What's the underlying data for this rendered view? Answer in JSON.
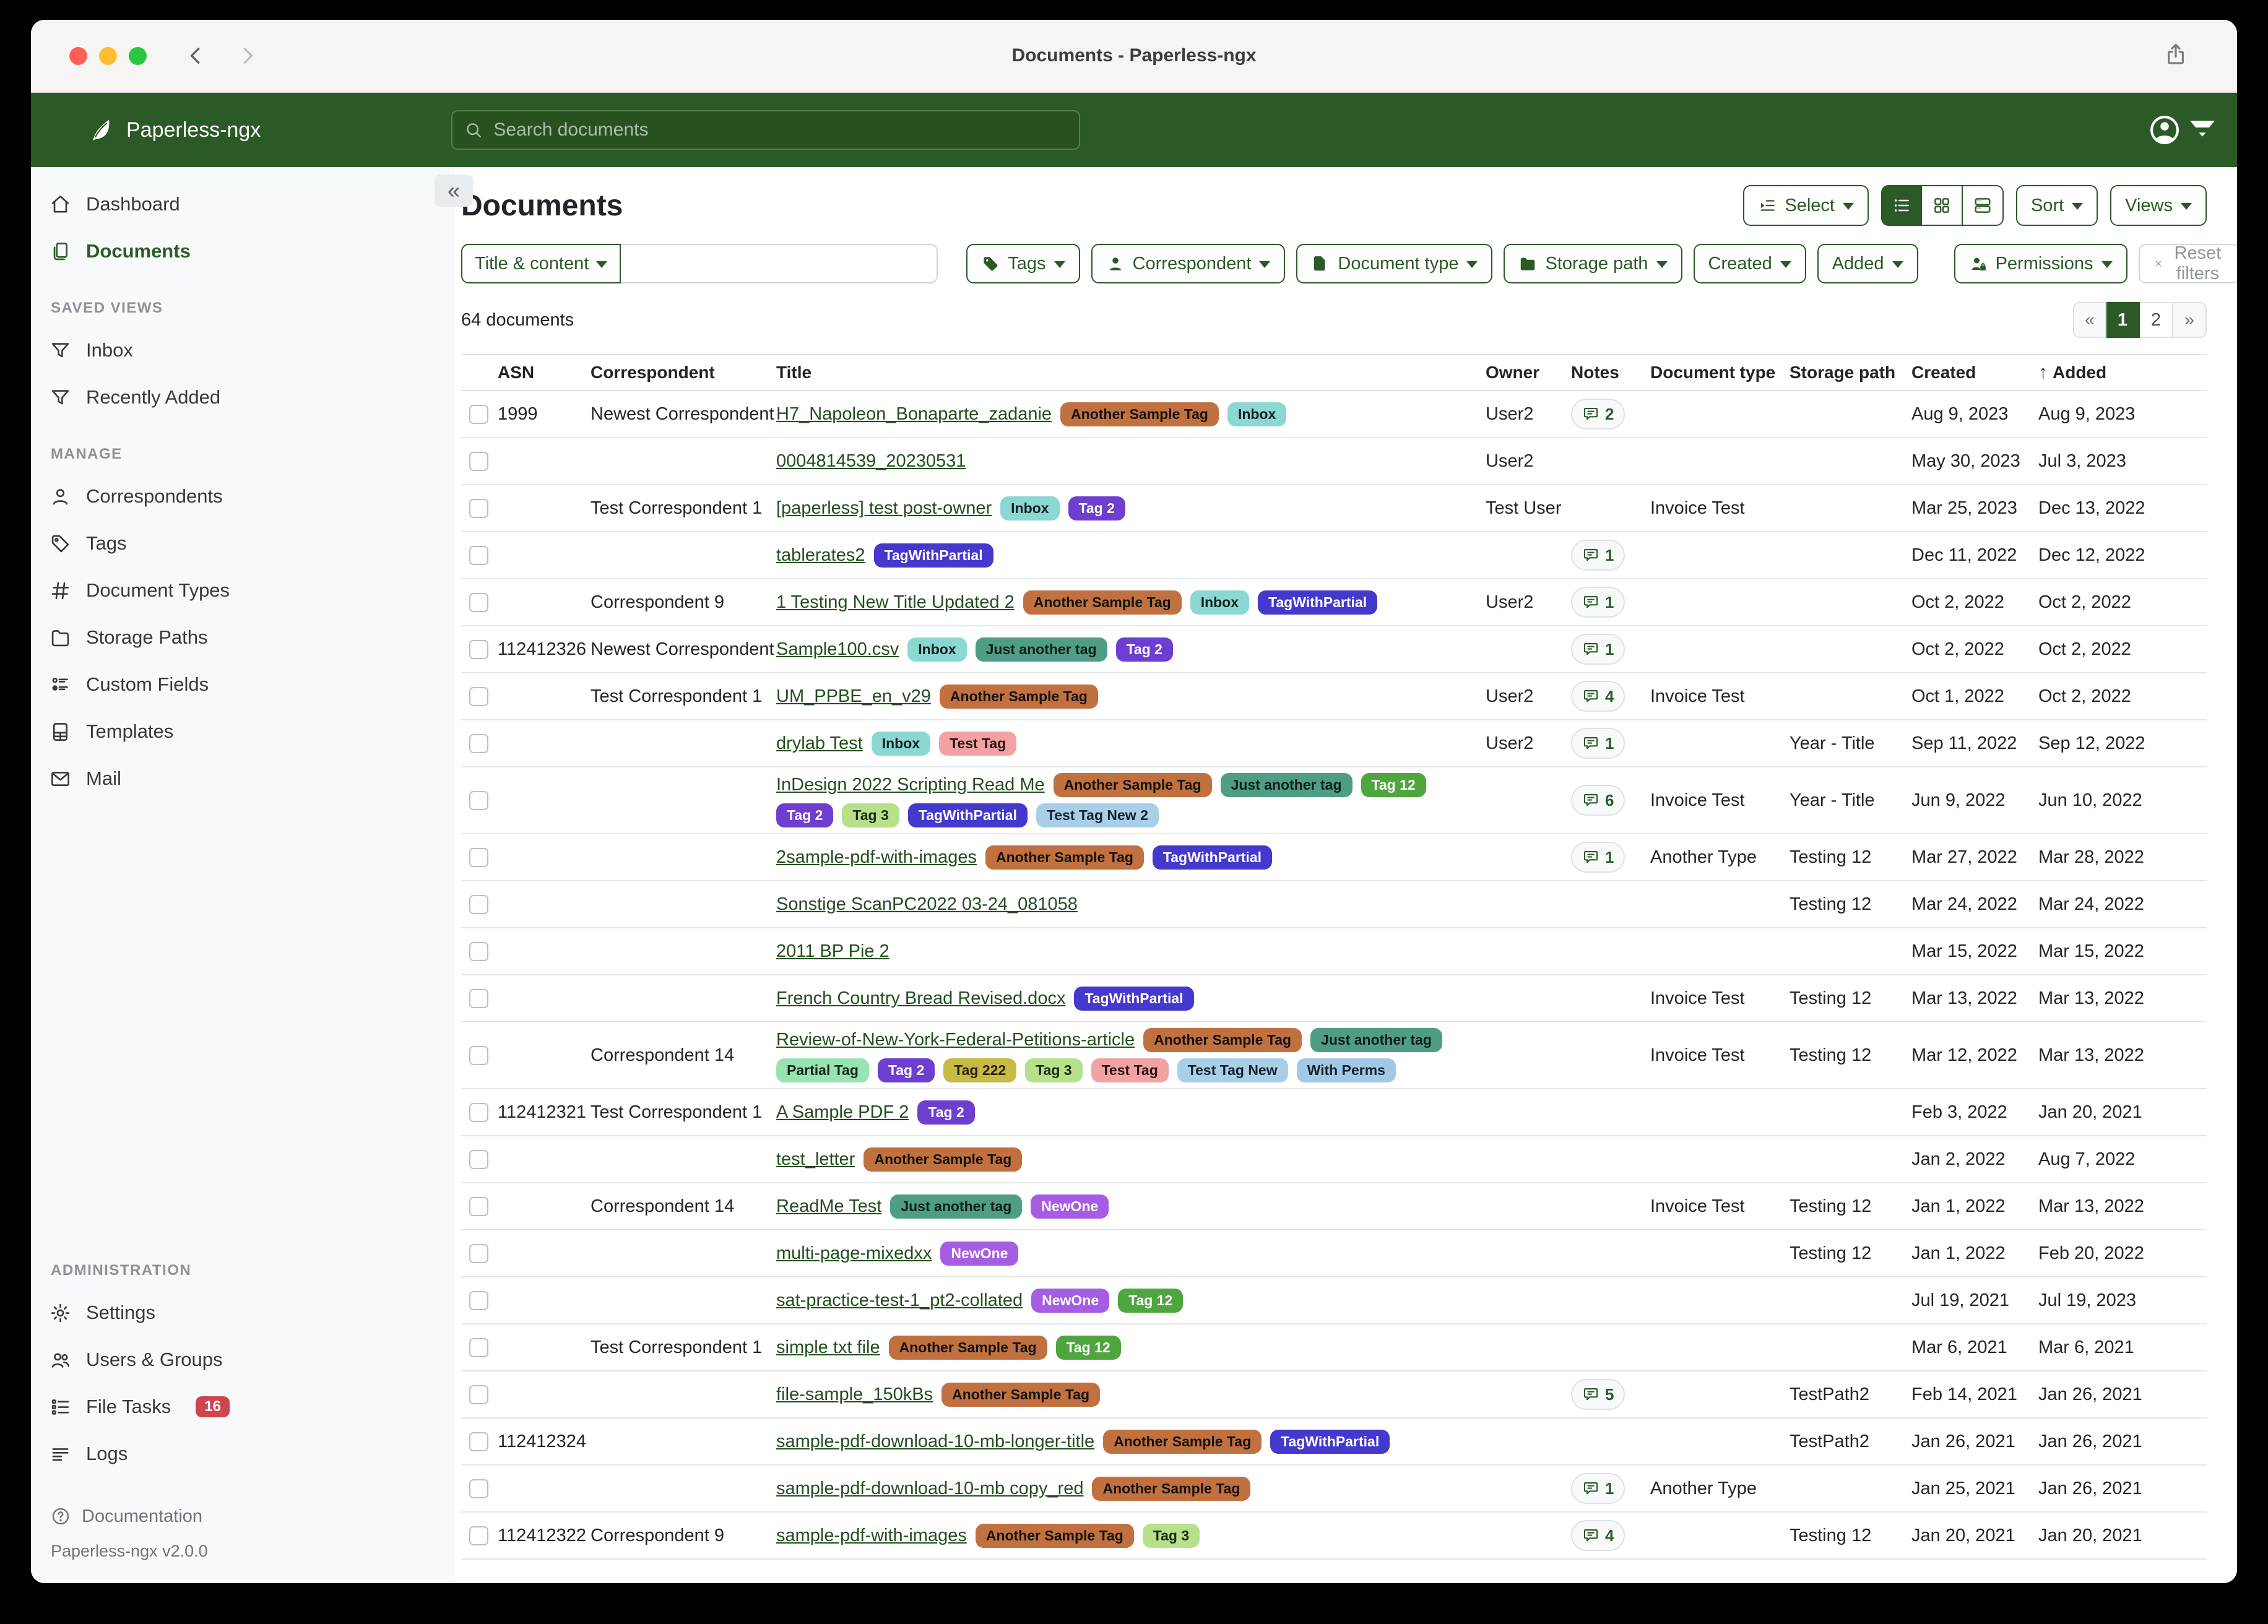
{
  "window": {
    "title": "Documents - Paperless-ngx"
  },
  "navbar": {
    "brand": "Paperless-ngx",
    "search_placeholder": "Search documents"
  },
  "sidebar": {
    "primary": [
      {
        "label": "Dashboard",
        "icon": "home"
      },
      {
        "label": "Documents",
        "icon": "documents",
        "active": true
      }
    ],
    "sections": [
      {
        "heading": "SAVED VIEWS",
        "items": [
          {
            "label": "Inbox",
            "icon": "funnel"
          },
          {
            "label": "Recently Added",
            "icon": "funnel"
          }
        ]
      },
      {
        "heading": "MANAGE",
        "items": [
          {
            "label": "Correspondents",
            "icon": "person"
          },
          {
            "label": "Tags",
            "icon": "tag"
          },
          {
            "label": "Document Types",
            "icon": "hash"
          },
          {
            "label": "Storage Paths",
            "icon": "folder"
          },
          {
            "label": "Custom Fields",
            "icon": "fields"
          },
          {
            "label": "Templates",
            "icon": "template"
          },
          {
            "label": "Mail",
            "icon": "mail"
          }
        ]
      },
      {
        "heading": "ADMINISTRATION",
        "push_bottom": true,
        "items": [
          {
            "label": "Settings",
            "icon": "gear"
          },
          {
            "label": "Users & Groups",
            "icon": "users"
          },
          {
            "label": "File Tasks",
            "icon": "tasks",
            "badge": "16"
          },
          {
            "label": "Logs",
            "icon": "logs"
          }
        ]
      }
    ],
    "documentation_label": "Documentation",
    "version": "Paperless-ngx v2.0.0"
  },
  "toolbar": {
    "title": "Documents",
    "select_label": "Select",
    "sort_label": "Sort",
    "views_label": "Views"
  },
  "filter_bar": {
    "field_selector": "Title & content",
    "buttons": [
      {
        "label": "Tags",
        "icon": "tagfill"
      },
      {
        "label": "Correspondent",
        "icon": "personfill"
      },
      {
        "label": "Document type",
        "icon": "filefill"
      },
      {
        "label": "Storage path",
        "icon": "folderfill"
      },
      {
        "label": "Created"
      },
      {
        "label": "Added"
      },
      {
        "label": "Permissions",
        "icon": "personlock"
      }
    ],
    "reset_label": "Reset filters"
  },
  "status": {
    "count_text": "64 documents"
  },
  "pagination": {
    "prev": "«",
    "pages": [
      "1",
      "2"
    ],
    "active_page": "1",
    "next": "»"
  },
  "colors": {
    "accent_green": "#2b5a27",
    "title_link_green": "#224e1e",
    "badge_red": "#ce4550"
  },
  "tag_colors": {
    "Another Sample Tag": {
      "bg": "#c1713f",
      "fg": "#15110d"
    },
    "Inbox": {
      "bg": "#8bd7d2",
      "fg": "#10211f"
    },
    "Tag 2": {
      "bg": "#6e3ed1",
      "fg": "#ffffff"
    },
    "TagWithPartial": {
      "bg": "#4438cd",
      "fg": "#ffffff"
    },
    "Just another tag": {
      "bg": "#4f9d86",
      "fg": "#0e1f1a"
    },
    "Tag 12": {
      "bg": "#4fa53e",
      "fg": "#ffffff"
    },
    "Tag 3": {
      "bg": "#b6e08a",
      "fg": "#1c2913"
    },
    "Test Tag": {
      "bg": "#f2a2a2",
      "fg": "#2b1414"
    },
    "Test Tag New 2": {
      "bg": "#a9cfe8",
      "fg": "#14222d"
    },
    "Partial Tag": {
      "bg": "#97e3b1",
      "fg": "#122619"
    },
    "Tag 222": {
      "bg": "#c9b945",
      "fg": "#26230c"
    },
    "Test Tag New": {
      "bg": "#a9cfe8",
      "fg": "#14222d"
    },
    "With Perms": {
      "bg": "#a3c8e6",
      "fg": "#14222d"
    },
    "NewOne": {
      "bg": "#a65ce3",
      "fg": "#ffffff"
    }
  },
  "table": {
    "columns": [
      "ASN",
      "Correspondent",
      "Title",
      "Owner",
      "Notes",
      "Document type",
      "Storage path",
      "Created",
      "Added"
    ],
    "sort_column": "Added",
    "sort_arrow": "↑",
    "rows": [
      {
        "asn": "1999",
        "correspondent": "Newest Correspondent",
        "title": "H7_Napoleon_Bonaparte_zadanie",
        "tags": [
          "Another Sample Tag",
          "Inbox"
        ],
        "owner": "User2",
        "notes": "2",
        "doctype": "",
        "storage": "",
        "created": "Aug 9, 2023",
        "added": "Aug 9, 2023"
      },
      {
        "asn": "",
        "correspondent": "",
        "title": "0004814539_20230531",
        "tags": [],
        "owner": "User2",
        "notes": "",
        "doctype": "",
        "storage": "",
        "created": "May 30, 2023",
        "added": "Jul 3, 2023"
      },
      {
        "asn": "",
        "correspondent": "Test Correspondent 1",
        "title": "[paperless] test post-owner",
        "tags": [
          "Inbox",
          "Tag 2"
        ],
        "owner": "Test User",
        "notes": "",
        "doctype": "Invoice Test",
        "storage": "",
        "created": "Mar 25, 2023",
        "added": "Dec 13, 2022"
      },
      {
        "asn": "",
        "correspondent": "",
        "title": "tablerates2",
        "tags": [
          "TagWithPartial"
        ],
        "owner": "",
        "notes": "1",
        "doctype": "",
        "storage": "",
        "created": "Dec 11, 2022",
        "added": "Dec 12, 2022"
      },
      {
        "asn": "",
        "correspondent": "Correspondent 9",
        "title": "1 Testing New Title Updated 2",
        "tags": [
          "Another Sample Tag",
          "Inbox",
          "TagWithPartial"
        ],
        "owner": "User2",
        "notes": "1",
        "doctype": "",
        "storage": "",
        "created": "Oct 2, 2022",
        "added": "Oct 2, 2022"
      },
      {
        "asn": "112412326",
        "correspondent": "Newest Correspondent",
        "title": "Sample100.csv",
        "tags": [
          "Inbox",
          "Just another tag",
          "Tag 2"
        ],
        "owner": "",
        "notes": "1",
        "doctype": "",
        "storage": "",
        "created": "Oct 2, 2022",
        "added": "Oct 2, 2022"
      },
      {
        "asn": "",
        "correspondent": "Test Correspondent 1",
        "title": "UM_PPBE_en_v29",
        "tags": [
          "Another Sample Tag"
        ],
        "owner": "User2",
        "notes": "4",
        "doctype": "Invoice Test",
        "storage": "",
        "created": "Oct 1, 2022",
        "added": "Oct 2, 2022"
      },
      {
        "asn": "",
        "correspondent": "",
        "title": "drylab Test",
        "tags": [
          "Inbox",
          "Test Tag"
        ],
        "owner": "User2",
        "notes": "1",
        "doctype": "",
        "storage": "Year - Title",
        "created": "Sep 11, 2022",
        "added": "Sep 12, 2022"
      },
      {
        "asn": "",
        "correspondent": "",
        "title": "InDesign 2022 Scripting Read Me",
        "tags": [
          "Another Sample Tag",
          "Just another tag",
          "Tag 12",
          "Tag 2",
          "Tag 3",
          "TagWithPartial",
          "Test Tag New 2"
        ],
        "owner": "",
        "notes": "6",
        "doctype": "Invoice Test",
        "storage": "Year - Title",
        "created": "Jun 9, 2022",
        "added": "Jun 10, 2022"
      },
      {
        "asn": "",
        "correspondent": "",
        "title": "2sample-pdf-with-images",
        "tags": [
          "Another Sample Tag",
          "TagWithPartial"
        ],
        "owner": "",
        "notes": "1",
        "doctype": "Another Type",
        "storage": "Testing 12",
        "created": "Mar 27, 2022",
        "added": "Mar 28, 2022"
      },
      {
        "asn": "",
        "correspondent": "",
        "title": "Sonstige ScanPC2022 03-24_081058",
        "tags": [],
        "owner": "",
        "notes": "",
        "doctype": "",
        "storage": "Testing 12",
        "created": "Mar 24, 2022",
        "added": "Mar 24, 2022"
      },
      {
        "asn": "",
        "correspondent": "",
        "title": "2011 BP Pie 2",
        "tags": [],
        "owner": "",
        "notes": "",
        "doctype": "",
        "storage": "",
        "created": "Mar 15, 2022",
        "added": "Mar 15, 2022"
      },
      {
        "asn": "",
        "correspondent": "",
        "title": "French Country Bread Revised.docx",
        "tags": [
          "TagWithPartial"
        ],
        "owner": "",
        "notes": "",
        "doctype": "Invoice Test",
        "storage": "Testing 12",
        "created": "Mar 13, 2022",
        "added": "Mar 13, 2022"
      },
      {
        "asn": "",
        "correspondent": "Correspondent 14",
        "title": "Review-of-New-York-Federal-Petitions-article",
        "tags": [
          "Another Sample Tag",
          "Just another tag",
          "Partial Tag",
          "Tag 2",
          "Tag 222",
          "Tag 3",
          "Test Tag",
          "Test Tag New",
          "With Perms"
        ],
        "owner": "",
        "notes": "",
        "doctype": "Invoice Test",
        "storage": "Testing 12",
        "created": "Mar 12, 2022",
        "added": "Mar 13, 2022"
      },
      {
        "asn": "112412321",
        "correspondent": "Test Correspondent 1",
        "title": "A Sample PDF 2",
        "tags": [
          "Tag 2"
        ],
        "owner": "",
        "notes": "",
        "doctype": "",
        "storage": "",
        "created": "Feb 3, 2022",
        "added": "Jan 20, 2021"
      },
      {
        "asn": "",
        "correspondent": "",
        "title": "test_letter",
        "tags": [
          "Another Sample Tag"
        ],
        "owner": "",
        "notes": "",
        "doctype": "",
        "storage": "",
        "created": "Jan 2, 2022",
        "added": "Aug 7, 2022"
      },
      {
        "asn": "",
        "correspondent": "Correspondent 14",
        "title": "ReadMe Test",
        "tags": [
          "Just another tag",
          "NewOne"
        ],
        "owner": "",
        "notes": "",
        "doctype": "Invoice Test",
        "storage": "Testing 12",
        "created": "Jan 1, 2022",
        "added": "Mar 13, 2022"
      },
      {
        "asn": "",
        "correspondent": "",
        "title": "multi-page-mixedxx",
        "tags": [
          "NewOne"
        ],
        "owner": "",
        "notes": "",
        "doctype": "",
        "storage": "Testing 12",
        "created": "Jan 1, 2022",
        "added": "Feb 20, 2022"
      },
      {
        "asn": "",
        "correspondent": "",
        "title": "sat-practice-test-1_pt2-collated",
        "tags": [
          "NewOne",
          "Tag 12"
        ],
        "owner": "",
        "notes": "",
        "doctype": "",
        "storage": "",
        "created": "Jul 19, 2021",
        "added": "Jul 19, 2023"
      },
      {
        "asn": "",
        "correspondent": "Test Correspondent 1",
        "title": "simple txt file",
        "tags": [
          "Another Sample Tag",
          "Tag 12"
        ],
        "owner": "",
        "notes": "",
        "doctype": "",
        "storage": "",
        "created": "Mar 6, 2021",
        "added": "Mar 6, 2021"
      },
      {
        "asn": "",
        "correspondent": "",
        "title": "file-sample_150kBs",
        "tags": [
          "Another Sample Tag"
        ],
        "owner": "",
        "notes": "5",
        "doctype": "",
        "storage": "TestPath2",
        "created": "Feb 14, 2021",
        "added": "Jan 26, 2021"
      },
      {
        "asn": "112412324",
        "correspondent": "",
        "title": "sample-pdf-download-10-mb-longer-title",
        "tags": [
          "Another Sample Tag",
          "TagWithPartial"
        ],
        "owner": "",
        "notes": "",
        "doctype": "",
        "storage": "TestPath2",
        "created": "Jan 26, 2021",
        "added": "Jan 26, 2021"
      },
      {
        "asn": "",
        "correspondent": "",
        "title": "sample-pdf-download-10-mb copy_red",
        "tags": [
          "Another Sample Tag"
        ],
        "owner": "",
        "notes": "1",
        "doctype": "Another Type",
        "storage": "",
        "created": "Jan 25, 2021",
        "added": "Jan 26, 2021"
      },
      {
        "asn": "112412322",
        "correspondent": "Correspondent 9",
        "title": "sample-pdf-with-images",
        "tags": [
          "Another Sample Tag",
          "Tag 3"
        ],
        "owner": "",
        "notes": "4",
        "doctype": "",
        "storage": "Testing 12",
        "created": "Jan 20, 2021",
        "added": "Jan 20, 2021"
      }
    ]
  }
}
